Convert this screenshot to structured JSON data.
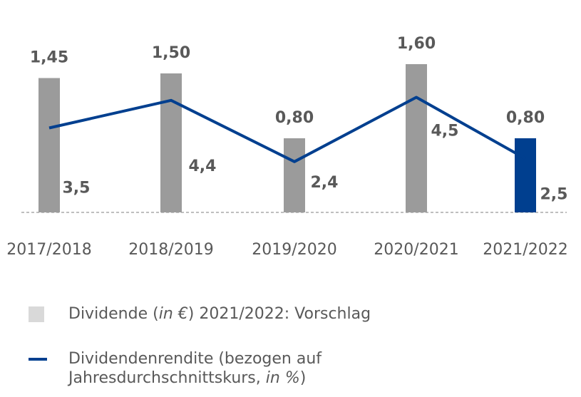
{
  "chart_data": {
    "type": "bar",
    "categories": [
      "2017/2018",
      "2018/2019",
      "2019/2020",
      "2020/2021",
      "2021/2022"
    ],
    "series": [
      {
        "name": "Dividende (in €) 2021/2022: Vorschlag",
        "type": "bar",
        "values": [
          1.45,
          1.5,
          0.8,
          1.6,
          0.8
        ],
        "value_labels": [
          "1,45",
          "1,50",
          "0,80",
          "1,60",
          "0,80"
        ],
        "colors": [
          "#9b9b9b",
          "#9b9b9b",
          "#9b9b9b",
          "#9b9b9b",
          "#003f8f"
        ]
      },
      {
        "name": "Dividendenrendite (bezogen auf Jahresdurchschnittskurs, in %)",
        "type": "line",
        "values": [
          3.5,
          4.4,
          2.4,
          4.5,
          2.5
        ],
        "value_labels": [
          "3,5",
          "4,4",
          "2,4",
          "4,5",
          "2,5"
        ],
        "color": "#003f8f"
      }
    ],
    "title": "",
    "xlabel": "",
    "ylabel": ""
  },
  "legend": {
    "items": [
      {
        "pre": "Dividende (",
        "italic": "in €",
        "post": ") 2021/2022: Vorschlag",
        "swatch": "box",
        "color": "#d9d9d9"
      },
      {
        "pre": "Dividendenrendite (bezogen auf Jahresdurchschnittskurs, ",
        "italic": "in %",
        "post": ")",
        "swatch": "line",
        "color": "#003f8f"
      }
    ]
  }
}
